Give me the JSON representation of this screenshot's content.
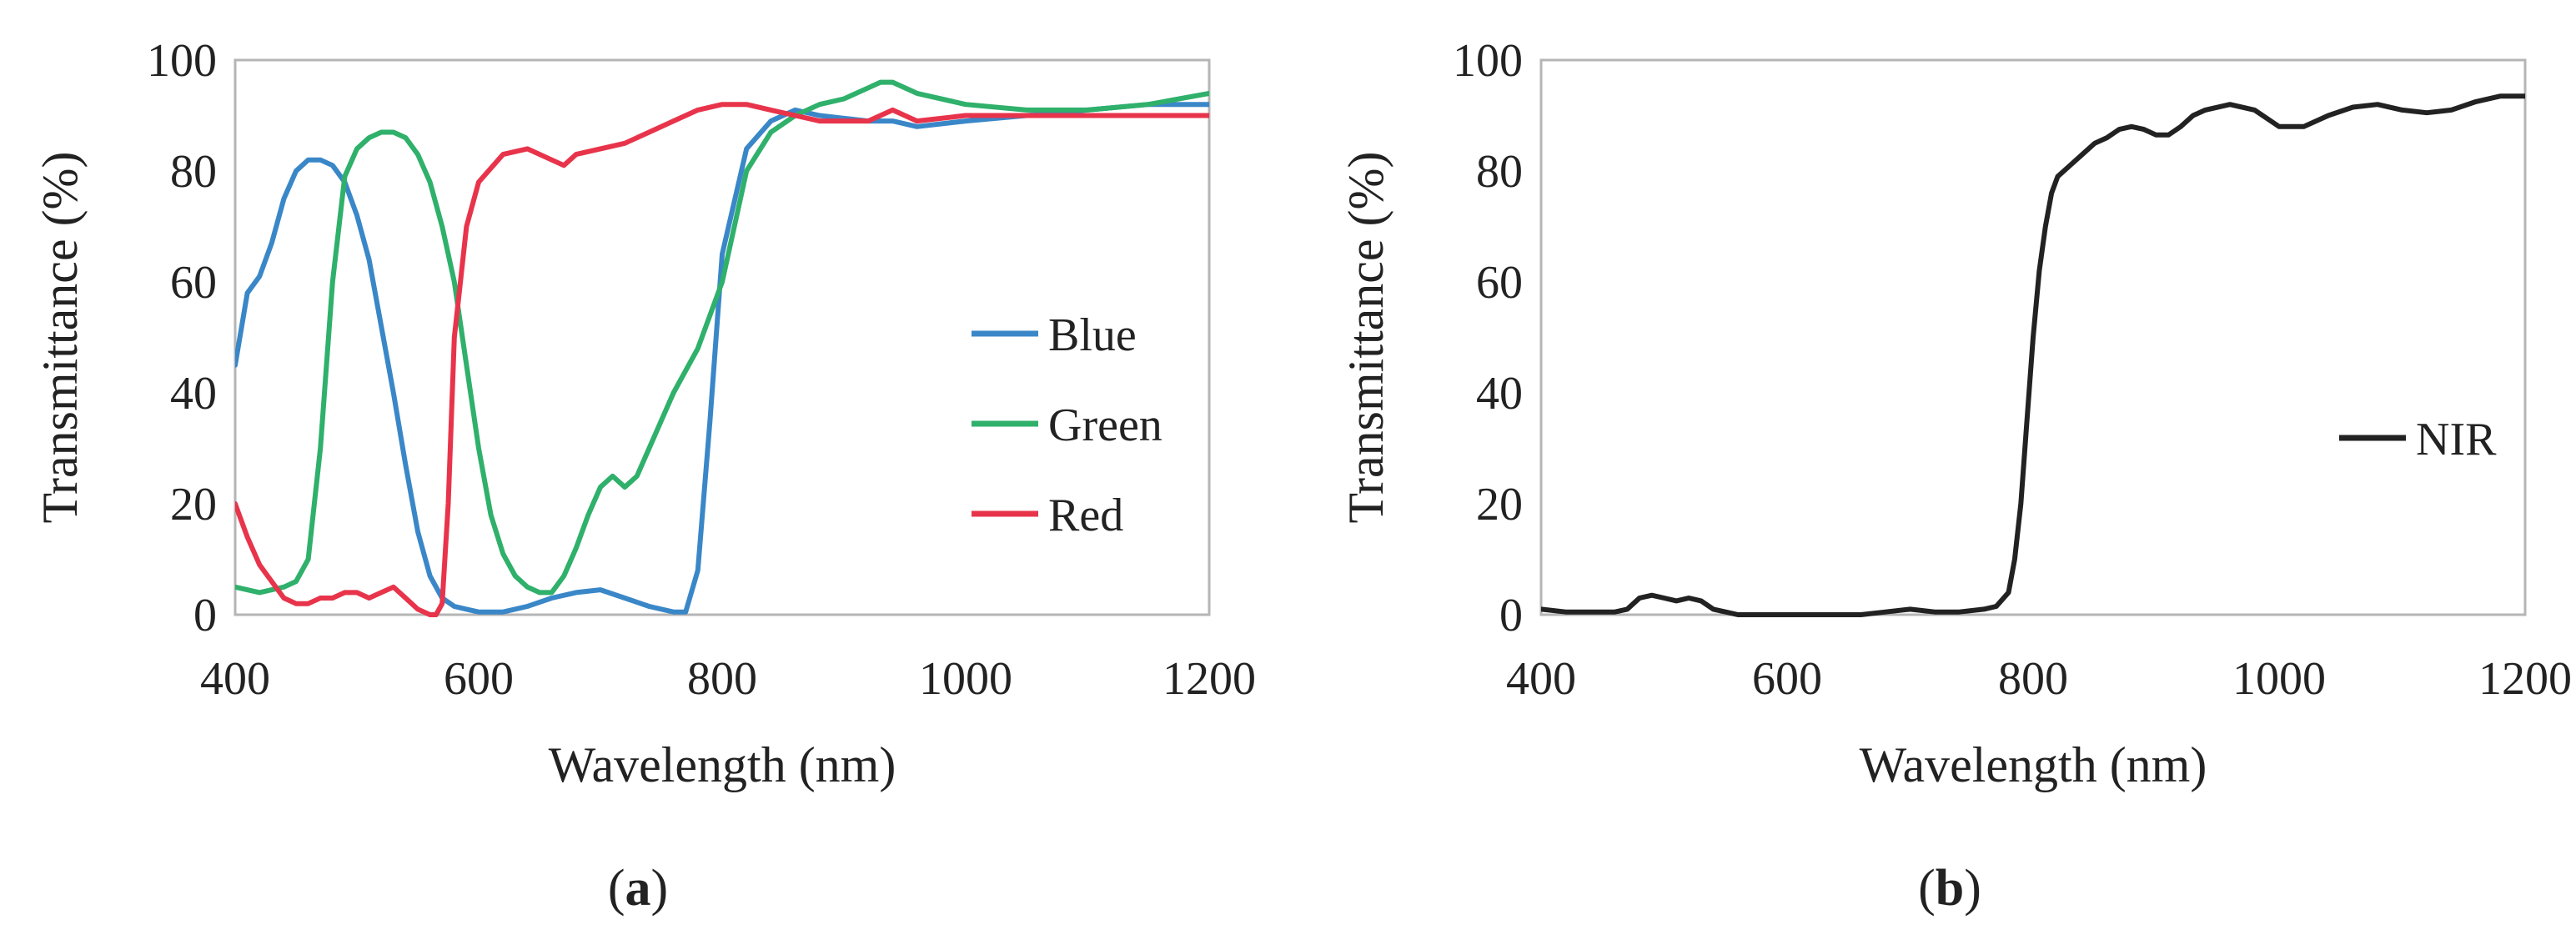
{
  "chart_data": [
    {
      "type": "line",
      "panel_label": "a",
      "xlabel": "Wavelength (nm)",
      "ylabel": "Transmittance (%)",
      "xlim": [
        400,
        1200
      ],
      "ylim": [
        0,
        100
      ],
      "xticks": [
        400,
        600,
        800,
        1000,
        1200
      ],
      "yticks": [
        0,
        20,
        40,
        60,
        80,
        100
      ],
      "grid": false,
      "legend_position": "right",
      "series": [
        {
          "name": "Blue",
          "color": "#3a87c8",
          "x": [
            400,
            410,
            420,
            430,
            440,
            450,
            460,
            470,
            480,
            490,
            500,
            510,
            520,
            530,
            540,
            550,
            560,
            570,
            580,
            590,
            600,
            620,
            640,
            660,
            680,
            700,
            720,
            740,
            760,
            770,
            780,
            790,
            800,
            820,
            840,
            860,
            880,
            900,
            920,
            940,
            960,
            1000,
            1050,
            1100,
            1150,
            1200
          ],
          "y": [
            45,
            58,
            61,
            67,
            75,
            80,
            82,
            82,
            81,
            78,
            72,
            64,
            52,
            40,
            27,
            15,
            7,
            3,
            1.5,
            1,
            0.5,
            0.5,
            1.5,
            3,
            4,
            4.5,
            3,
            1.5,
            0.5,
            0.5,
            8,
            35,
            65,
            84,
            89,
            91,
            90,
            89.5,
            89,
            89,
            88,
            89,
            90,
            91,
            92,
            92
          ]
        },
        {
          "name": "Green",
          "color": "#2fb06b",
          "x": [
            400,
            420,
            440,
            450,
            460,
            470,
            480,
            490,
            500,
            510,
            520,
            530,
            540,
            550,
            560,
            570,
            580,
            590,
            600,
            610,
            620,
            630,
            640,
            650,
            660,
            670,
            680,
            690,
            700,
            710,
            720,
            730,
            740,
            760,
            780,
            800,
            820,
            840,
            860,
            880,
            900,
            920,
            930,
            940,
            960,
            1000,
            1050,
            1100,
            1150,
            1200
          ],
          "y": [
            5,
            4,
            5,
            6,
            10,
            30,
            60,
            79,
            84,
            86,
            87,
            87,
            86,
            83,
            78,
            70,
            60,
            45,
            30,
            18,
            11,
            7,
            5,
            4,
            4,
            7,
            12,
            18,
            23,
            25,
            23,
            25,
            30,
            40,
            48,
            60,
            80,
            87,
            90,
            92,
            93,
            95,
            96,
            96,
            94,
            92,
            91,
            91,
            92,
            94
          ]
        },
        {
          "name": "Red",
          "color": "#e8344b",
          "x": [
            400,
            410,
            420,
            430,
            440,
            450,
            460,
            470,
            480,
            490,
            500,
            510,
            520,
            530,
            540,
            550,
            560,
            565,
            570,
            575,
            580,
            590,
            600,
            620,
            640,
            660,
            670,
            680,
            700,
            720,
            740,
            760,
            780,
            800,
            820,
            840,
            860,
            880,
            900,
            920,
            930,
            940,
            960,
            1000,
            1050,
            1100,
            1150,
            1200
          ],
          "y": [
            20,
            14,
            9,
            6,
            3,
            2,
            2,
            3,
            3,
            4,
            4,
            3,
            4,
            5,
            3,
            1,
            0,
            0,
            2,
            20,
            50,
            70,
            78,
            83,
            84,
            82,
            81,
            83,
            84,
            85,
            87,
            89,
            91,
            92,
            92,
            91,
            90,
            89,
            89,
            89,
            90,
            91,
            89,
            90,
            90,
            90,
            90,
            90
          ]
        }
      ]
    },
    {
      "type": "line",
      "panel_label": "b",
      "xlabel": "Wavelength (nm)",
      "ylabel": "Transmittance (%)",
      "xlim": [
        400,
        1200
      ],
      "ylim": [
        0,
        100
      ],
      "xticks": [
        400,
        600,
        800,
        1000,
        1200
      ],
      "yticks": [
        0,
        20,
        40,
        60,
        80,
        100
      ],
      "grid": false,
      "legend_position": "right",
      "series": [
        {
          "name": "NIR",
          "color": "#222222",
          "x": [
            400,
            420,
            440,
            460,
            470,
            480,
            490,
            500,
            510,
            520,
            530,
            540,
            550,
            560,
            580,
            600,
            620,
            640,
            660,
            680,
            700,
            720,
            740,
            760,
            770,
            780,
            785,
            790,
            795,
            800,
            805,
            810,
            815,
            820,
            830,
            840,
            850,
            860,
            870,
            880,
            890,
            900,
            910,
            920,
            930,
            940,
            960,
            980,
            1000,
            1020,
            1040,
            1060,
            1080,
            1100,
            1120,
            1140,
            1160,
            1180,
            1200
          ],
          "y": [
            1,
            0.5,
            0.5,
            0.5,
            1,
            3,
            3.5,
            3,
            2.5,
            3,
            2.5,
            1,
            0.5,
            0,
            0,
            0,
            0,
            0,
            0,
            0.5,
            1,
            0.5,
            0.5,
            1,
            1.5,
            4,
            10,
            20,
            35,
            50,
            62,
            70,
            76,
            79,
            81,
            83,
            85,
            86,
            87.5,
            88,
            87.5,
            86.5,
            86.5,
            88,
            90,
            91,
            92,
            91,
            88,
            88,
            90,
            91.5,
            92,
            91,
            90.5,
            91,
            92.5,
            93.5,
            93.5
          ]
        }
      ]
    }
  ]
}
